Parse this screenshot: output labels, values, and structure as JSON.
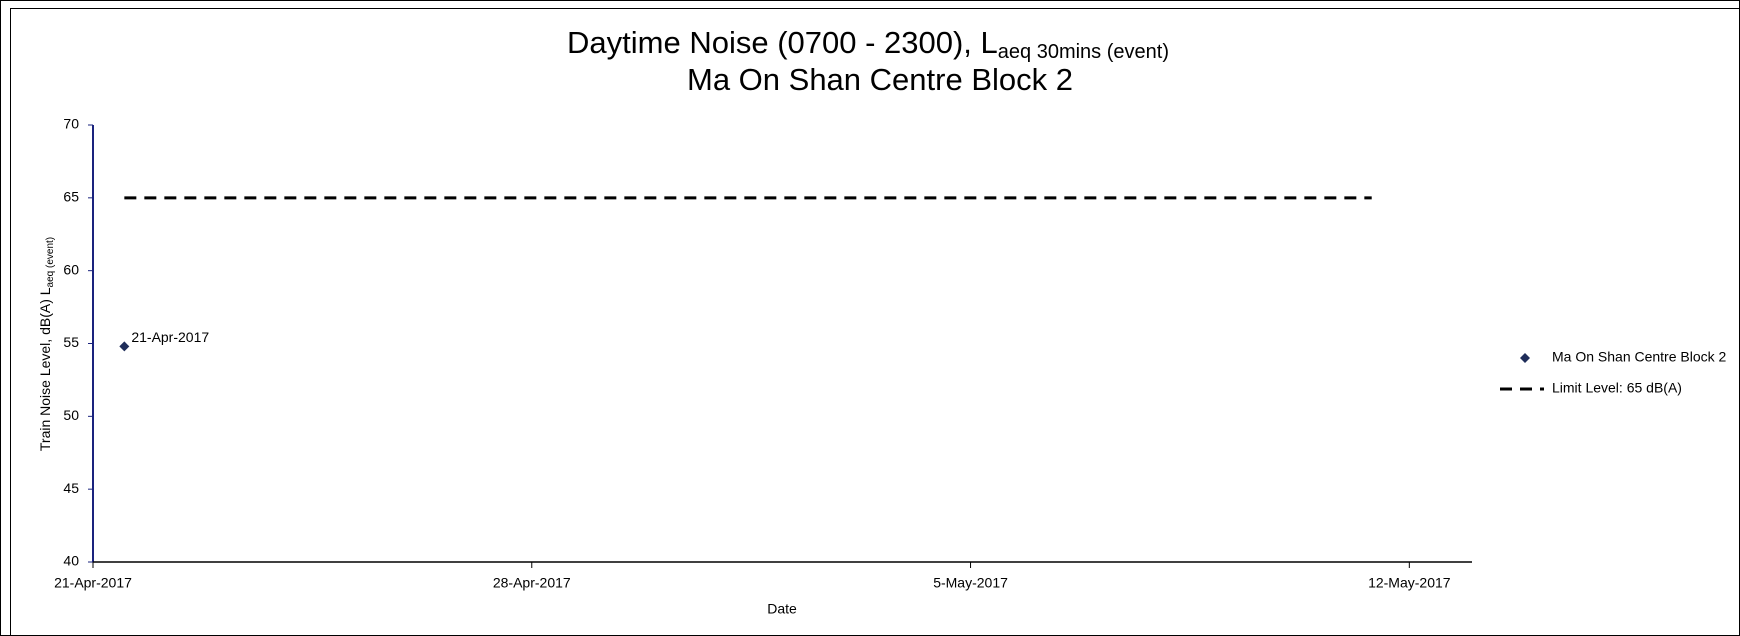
{
  "chart_data": {
    "type": "scatter",
    "title": {
      "main": "Daytime Noise (0700 - 2300), L",
      "sub": "aeq 30mins (event)"
    },
    "subtitle": "Ma On Shan Centre Block 2",
    "x_label": "Date",
    "y_label": {
      "main": "Train Noise Level, dB(A) L",
      "sub": "aeq (event)"
    },
    "series": [
      {
        "name": "Ma On Shan Centre Block 2",
        "color": "#1f2d5a",
        "marker": "diamond",
        "x": [
          42846.5
        ],
        "values": [
          54.8
        ],
        "point_labels": [
          "21-Apr-2017"
        ]
      },
      {
        "name": "Limit Level: 65 dB(A)",
        "color": "#000000",
        "style": "dashed",
        "x": [
          42846.5,
          42866.4
        ],
        "values": [
          65,
          65
        ]
      }
    ],
    "xlim": [
      42846,
      42868
    ],
    "xticks": [
      {
        "value": 42846,
        "label": "21-Apr-2017"
      },
      {
        "value": 42853,
        "label": "28-Apr-2017"
      },
      {
        "value": 42860,
        "label": "5-May-2017"
      },
      {
        "value": 42867,
        "label": "12-May-2017"
      }
    ],
    "ylim": [
      40,
      70
    ],
    "yticks": [
      40,
      45,
      50,
      55,
      60,
      65,
      70
    ],
    "grid": false,
    "legend": "right"
  }
}
